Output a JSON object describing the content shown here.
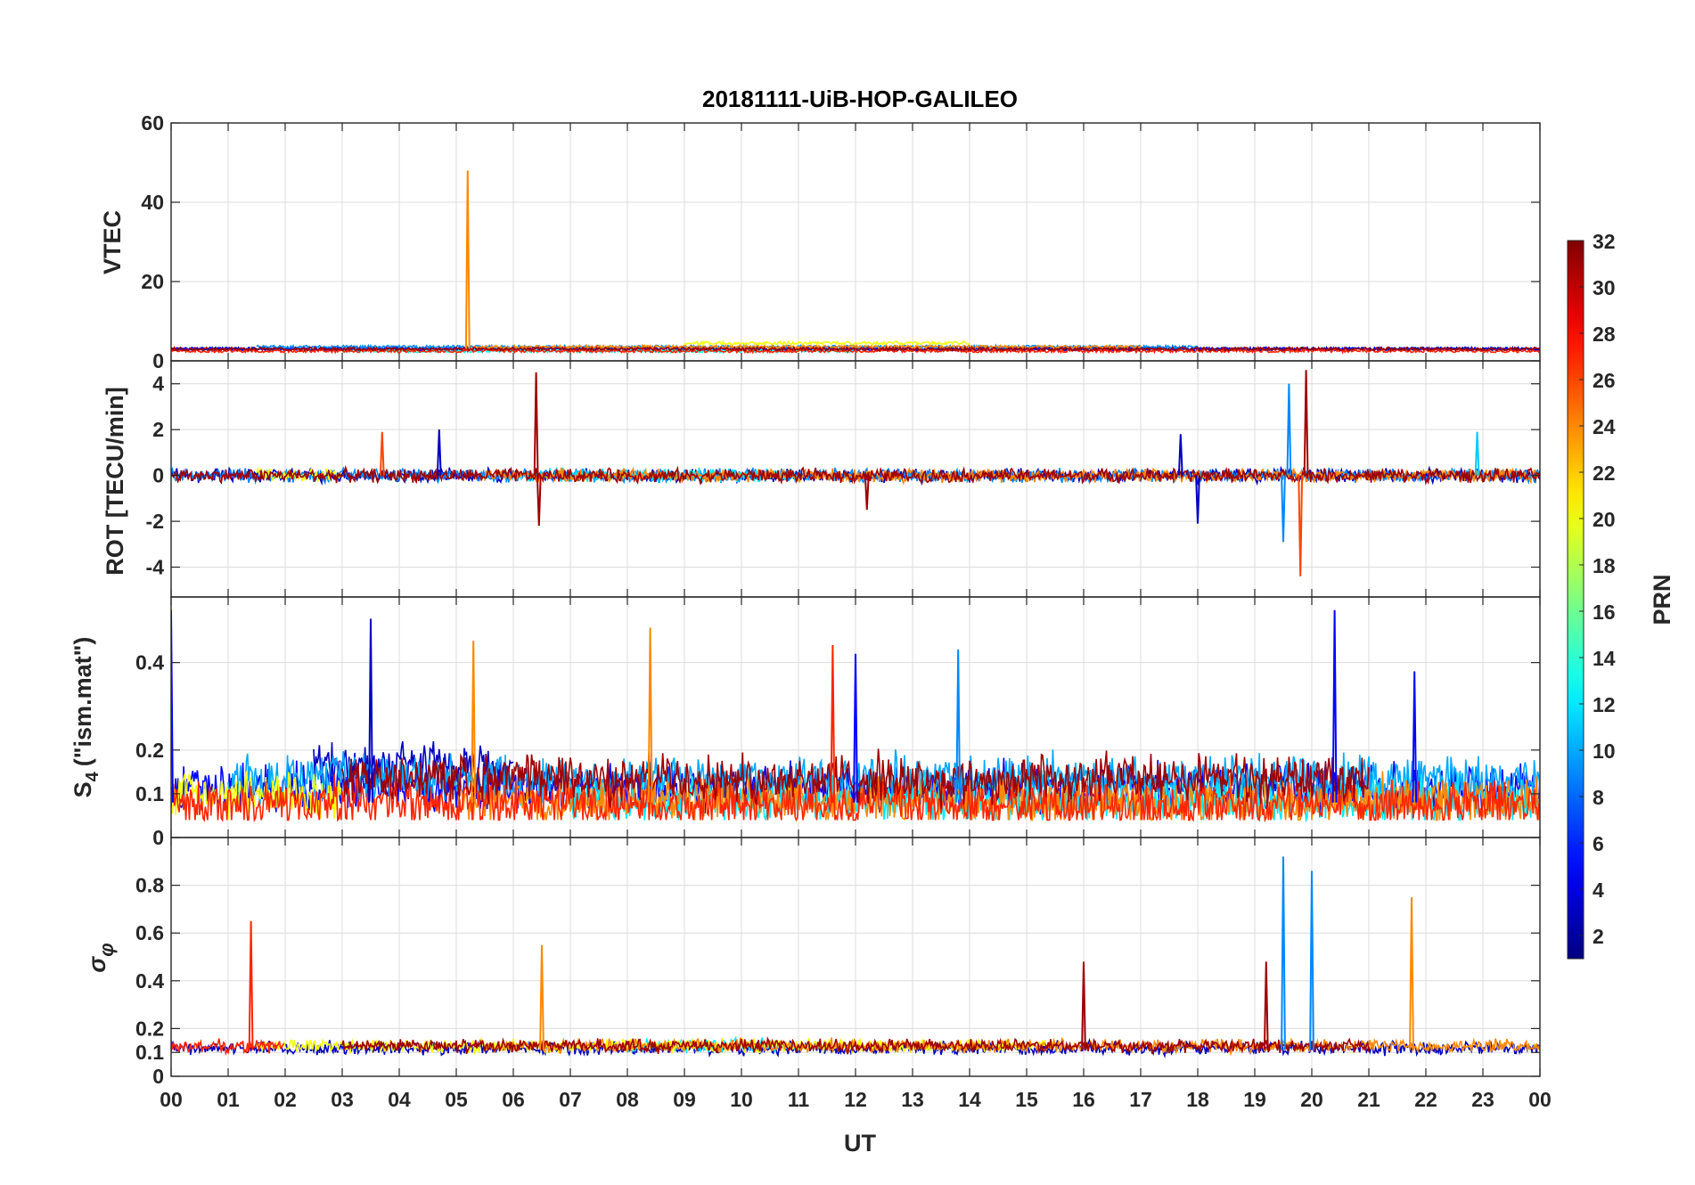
{
  "chart_data": {
    "type": "line",
    "title": "20181111-UiB-HOP-GALILEO",
    "xlabel": "UT",
    "x_ticks": [
      "00",
      "01",
      "02",
      "03",
      "04",
      "05",
      "06",
      "07",
      "08",
      "09",
      "10",
      "11",
      "12",
      "13",
      "14",
      "15",
      "16",
      "17",
      "18",
      "19",
      "20",
      "21",
      "22",
      "23",
      "00"
    ],
    "xlim": [
      0,
      24
    ],
    "colorbar": {
      "label": "PRN",
      "range": [
        1,
        32
      ],
      "ticks": [
        "2",
        "4",
        "6",
        "8",
        "10",
        "12",
        "14",
        "16",
        "18",
        "20",
        "22",
        "24",
        "26",
        "28",
        "30",
        "32"
      ],
      "colormap": "jet"
    },
    "panels": [
      {
        "id": "vtec",
        "ylabel": "VTEC",
        "ylim": [
          0,
          60
        ],
        "y_ticks": [
          "0",
          "20",
          "40",
          "60"
        ],
        "baseline": 3,
        "noise": 0.8,
        "spikes": [
          [
            5.2,
            48,
            24
          ]
        ],
        "series": [
          {
            "prn": 1,
            "x": [
              0,
              24
            ],
            "level": 3
          },
          {
            "prn": 5,
            "x": [
              0,
              24
            ],
            "level": 3
          },
          {
            "prn": 9,
            "x": [
              1.5,
              18
            ],
            "level": 3.5
          },
          {
            "prn": 13,
            "x": [
              3,
              12
            ],
            "level": 2.5
          },
          {
            "prn": 20,
            "x": [
              9,
              14
            ],
            "level": 4.5
          },
          {
            "prn": 24,
            "x": [
              5.3,
              17
            ],
            "level": 3.5
          },
          {
            "prn": 27,
            "x": [
              0,
              24
            ],
            "level": 2.5
          },
          {
            "prn": 31,
            "x": [
              0,
              24
            ],
            "level": 3
          }
        ]
      },
      {
        "id": "rot",
        "ylabel": "ROT [TECU/min]",
        "ylim": [
          -5.3,
          5
        ],
        "y_ticks": [
          "-4",
          "-2",
          "0",
          "2",
          "4"
        ],
        "baseline": 0,
        "noise": 0.35,
        "spikes": [
          [
            6.4,
            4.5,
            31
          ],
          [
            6.45,
            -2.2,
            31
          ],
          [
            3.7,
            1.9,
            26
          ],
          [
            19.6,
            4.0,
            9
          ],
          [
            19.5,
            -2.9,
            9
          ],
          [
            19.9,
            4.6,
            31
          ],
          [
            19.8,
            -4.4,
            26
          ],
          [
            18.0,
            -2.1,
            3
          ],
          [
            17.7,
            1.8,
            3
          ],
          [
            4.7,
            2.0,
            3
          ],
          [
            12.2,
            -1.5,
            31
          ],
          [
            22.9,
            1.9,
            11
          ]
        ],
        "series": [
          {
            "prn": 3,
            "x": [
              0,
              24
            ],
            "level": 0
          },
          {
            "prn": 9,
            "x": [
              0,
              24
            ],
            "level": 0
          },
          {
            "prn": 12,
            "x": [
              6,
              11
            ],
            "level": 0
          },
          {
            "prn": 20,
            "x": [
              1.5,
              3
            ],
            "level": 0
          },
          {
            "prn": 24,
            "x": [
              5.5,
              24
            ],
            "level": 0
          },
          {
            "prn": 31,
            "x": [
              0,
              24
            ],
            "level": 0
          }
        ]
      },
      {
        "id": "s4",
        "ylabel": "S4 (\"ism.mat\")",
        "ylim": [
          0,
          0.55
        ],
        "y_ticks": [
          "0",
          "0.1",
          "0.2",
          "0.4"
        ],
        "baseline": 0.08,
        "noise": 0.06,
        "spikes": [
          [
            3.5,
            0.5,
            3
          ],
          [
            5.3,
            0.45,
            24
          ],
          [
            8.4,
            0.48,
            24
          ],
          [
            11.6,
            0.44,
            27
          ],
          [
            12.0,
            0.42,
            5
          ],
          [
            13.8,
            0.43,
            9
          ],
          [
            20.4,
            0.52,
            5
          ],
          [
            21.8,
            0.38,
            5
          ],
          [
            0.0,
            0.52,
            5
          ]
        ],
        "series": [
          {
            "prn": 3,
            "x": [
              2.5,
              6
            ],
            "level": 0.15
          },
          {
            "prn": 5,
            "x": [
              0,
              24
            ],
            "level": 0.1
          },
          {
            "prn": 10,
            "x": [
              1,
              24
            ],
            "level": 0.12
          },
          {
            "prn": 12,
            "x": [
              7,
              24
            ],
            "level": 0.07
          },
          {
            "prn": 20,
            "x": [
              0,
              3
            ],
            "level": 0.08
          },
          {
            "prn": 24,
            "x": [
              5,
              24
            ],
            "level": 0.07
          },
          {
            "prn": 27,
            "x": [
              0,
              24
            ],
            "level": 0.06
          },
          {
            "prn": 31,
            "x": [
              3,
              21
            ],
            "level": 0.12
          }
        ]
      },
      {
        "id": "sigphi",
        "ylabel": "σφ",
        "ylim": [
          0,
          1
        ],
        "y_ticks": [
          "0",
          "0.1",
          "0.2",
          "0.4",
          "0.6",
          "0.8"
        ],
        "baseline": 0.11,
        "noise": 0.03,
        "spikes": [
          [
            1.4,
            0.65,
            27
          ],
          [
            6.5,
            0.55,
            24
          ],
          [
            19.5,
            0.92,
            9
          ],
          [
            20.0,
            0.86,
            9
          ],
          [
            21.75,
            0.75,
            24
          ],
          [
            19.2,
            0.48,
            31
          ],
          [
            16.0,
            0.48,
            31
          ]
        ],
        "series": [
          {
            "prn": 3,
            "x": [
              0,
              24
            ],
            "level": 0.11
          },
          {
            "prn": 12,
            "x": [
              8,
              11
            ],
            "level": 0.12
          },
          {
            "prn": 20,
            "x": [
              1.5,
              15.5
            ],
            "level": 0.12
          },
          {
            "prn": 24,
            "x": [
              5.5,
              24
            ],
            "level": 0.12
          },
          {
            "prn": 27,
            "x": [
              0,
              2
            ],
            "level": 0.12
          },
          {
            "prn": 31,
            "x": [
              3,
              21
            ],
            "level": 0.12
          }
        ]
      }
    ]
  }
}
